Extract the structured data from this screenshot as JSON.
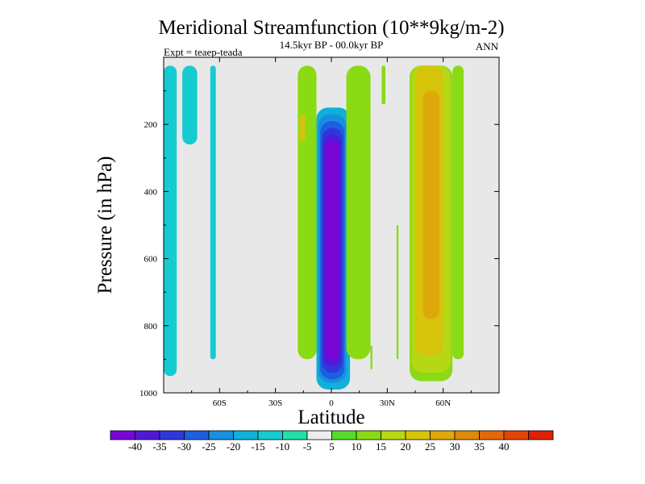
{
  "chart_data": {
    "type": "filled-contour",
    "title": "Meridional Streamfunction (10**9kg/m-2)",
    "subtitle": "14.5kyr BP - 00.0kyr BP",
    "left_label": "Expt = teaep-teada",
    "right_label": "ANN",
    "xlabel": "Latitude",
    "ylabel": "Pressure (in hPa)",
    "xlim": [
      -90,
      90
    ],
    "ylim": [
      0,
      1000
    ],
    "y_inverted": true,
    "x_ticks": [
      {
        "value": -60,
        "label": "60S"
      },
      {
        "value": -30,
        "label": "30S"
      },
      {
        "value": 0,
        "label": "0"
      },
      {
        "value": 30,
        "label": "30N"
      },
      {
        "value": 60,
        "label": "60N"
      }
    ],
    "y_ticks": [
      {
        "value": 200,
        "label": "200"
      },
      {
        "value": 400,
        "label": "400"
      },
      {
        "value": 600,
        "label": "600"
      },
      {
        "value": 800,
        "label": "800"
      },
      {
        "value": 1000,
        "label": "1000"
      }
    ],
    "background_color": "#e8e8e8",
    "colorbar": {
      "colors": [
        "#7a06d6",
        "#5218d8",
        "#2e37dc",
        "#1c5fe0",
        "#1690de",
        "#10b0d8",
        "#15cbd0",
        "#22e0a8",
        "#ececec",
        "#55dc2a",
        "#8ada14",
        "#b6d814",
        "#d6c40a",
        "#dea80a",
        "#e08a08",
        "#e26a06",
        "#e24404",
        "#de2004"
      ],
      "labels": [
        "-40",
        "-35",
        "-30",
        "-25",
        "-20",
        "-15",
        "-10",
        "-5",
        "5",
        "10",
        "15",
        "20",
        "25",
        "30",
        "35",
        "40"
      ]
    },
    "regions": [
      {
        "name": "sh-polar-cell",
        "level": -10,
        "lat": [
          -90,
          -83
        ],
        "p": [
          25,
          950
        ]
      },
      {
        "name": "sh-polar-cell",
        "level": -10,
        "lat": [
          -80,
          -72
        ],
        "p": [
          25,
          260
        ]
      },
      {
        "name": "sh-highlat-cell",
        "level": -10,
        "lat": [
          -65,
          -62
        ],
        "p": [
          25,
          900
        ]
      },
      {
        "name": "sh-subtropical",
        "level": 10,
        "lat": [
          -18,
          -8
        ],
        "p": [
          25,
          900
        ]
      },
      {
        "name": "sh-subtropical",
        "level": 20,
        "lat": [
          -17,
          -14
        ],
        "p": [
          170,
          250
        ]
      },
      {
        "name": "hadley-cell",
        "level": -15,
        "lat": [
          -8,
          10
        ],
        "p": [
          150,
          990
        ]
      },
      {
        "name": "hadley-cell",
        "level": -20,
        "lat": [
          -7,
          8
        ],
        "p": [
          170,
          970
        ]
      },
      {
        "name": "hadley-cell",
        "level": -25,
        "lat": [
          -6,
          7
        ],
        "p": [
          190,
          960
        ]
      },
      {
        "name": "hadley-cell",
        "level": -30,
        "lat": [
          -5,
          6
        ],
        "p": [
          210,
          940
        ]
      },
      {
        "name": "hadley-cell",
        "level": -35,
        "lat": [
          -4,
          5
        ],
        "p": [
          230,
          920
        ]
      },
      {
        "name": "hadley-cell",
        "level": -40,
        "lat": [
          -3,
          4
        ],
        "p": [
          250,
          900
        ]
      },
      {
        "name": "nh-subtropical",
        "level": 10,
        "lat": [
          8,
          21
        ],
        "p": [
          25,
          900
        ]
      },
      {
        "name": "nh-subtropical",
        "level": 10,
        "lat": [
          21,
          22
        ],
        "p": [
          860,
          930
        ]
      },
      {
        "name": "nh-subtropical",
        "level": 10,
        "lat": [
          27,
          29
        ],
        "p": [
          25,
          140
        ]
      },
      {
        "name": "nh-subtropical",
        "level": 10,
        "lat": [
          35,
          36
        ],
        "p": [
          500,
          900
        ]
      },
      {
        "name": "ferrel-cell",
        "level": 10,
        "lat": [
          42,
          65
        ],
        "p": [
          25,
          965
        ]
      },
      {
        "name": "ferrel-cell",
        "level": 15,
        "lat": [
          43,
          64
        ],
        "p": [
          25,
          940
        ]
      },
      {
        "name": "ferrel-cell",
        "level": 20,
        "lat": [
          45,
          60
        ],
        "p": [
          25,
          890
        ]
      },
      {
        "name": "ferrel-cell",
        "level": 25,
        "lat": [
          49,
          58
        ],
        "p": [
          100,
          780
        ]
      },
      {
        "name": "nh-highlat",
        "level": 10,
        "lat": [
          65,
          71
        ],
        "p": [
          25,
          900
        ]
      }
    ]
  }
}
